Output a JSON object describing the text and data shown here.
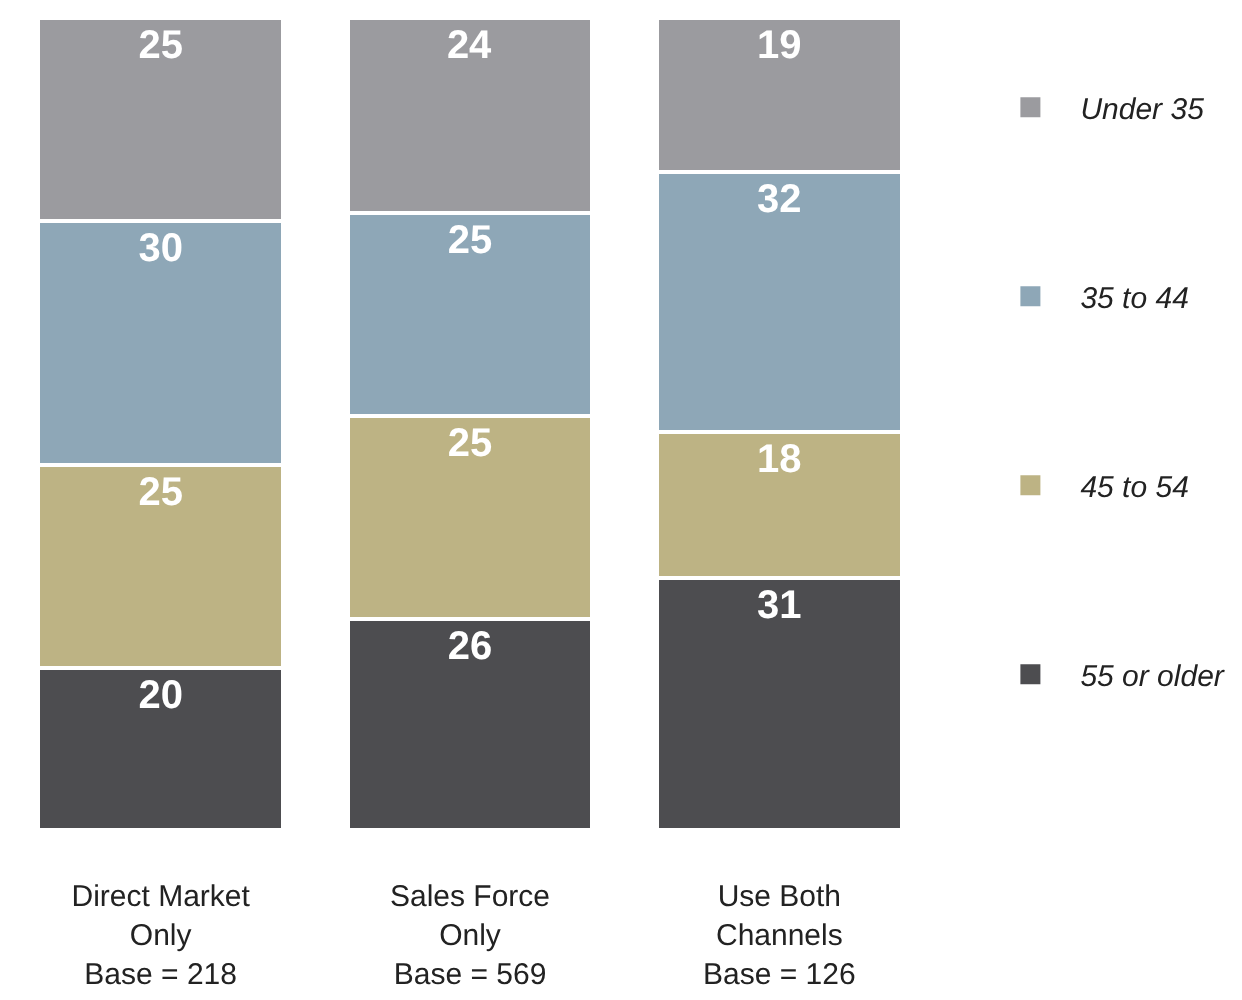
{
  "chart_data": {
    "type": "bar",
    "stacked": true,
    "data_labels": true,
    "legend": "right",
    "tick_labels": "x",
    "categories": [
      "Direct Market\nOnly\nBase = 218",
      "Sales Force\nOnly\nBase = 569",
      "Use Both\nChannels\nBase = 126"
    ],
    "series": [
      {
        "name": "55 or older",
        "color": "#4d4d50",
        "values": [
          20,
          26,
          31
        ]
      },
      {
        "name": "45 to 54",
        "color": "#bdb384",
        "values": [
          25,
          25,
          18
        ]
      },
      {
        "name": "35 to 44",
        "color": "#8ea7b7",
        "values": [
          30,
          25,
          32
        ]
      },
      {
        "name": "Under 35",
        "color": "#9b9b9f",
        "values": [
          25,
          24,
          19
        ]
      }
    ]
  }
}
